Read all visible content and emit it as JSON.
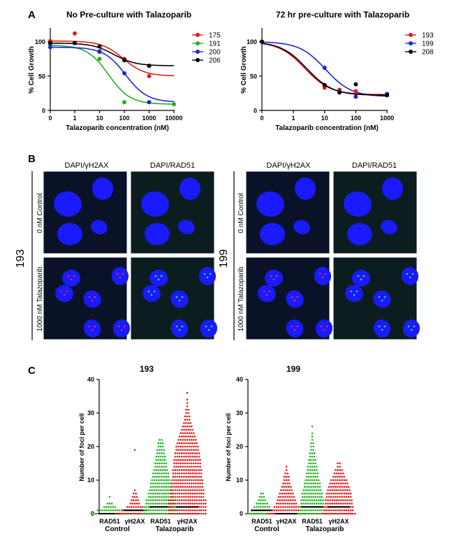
{
  "panel_labels": {
    "a": "A",
    "b": "B",
    "c": "C"
  },
  "colors": {
    "red": "#e41a1c",
    "green": "#22b022",
    "blue": "#1f24d8",
    "black": "#000000",
    "nuclei": "#1a1aff",
    "micro_bg": "#0a1020"
  },
  "chart_data": [
    {
      "type": "line",
      "panel": "A",
      "title": "No Pre-culture with Talazoparib",
      "xlabel": "Talazoparib concentration (nM)",
      "ylabel": "% Cell Growth",
      "x_scale": "log",
      "x_ticks": [
        "0",
        "1",
        "10",
        "100",
        "1000",
        "10000"
      ],
      "y_ticks": [
        "0",
        "50",
        "100"
      ],
      "ylim": [
        0,
        120
      ],
      "legend_position": "right",
      "series": [
        {
          "name": "175",
          "color": "#e41a1c",
          "x": [
            0,
            1,
            10,
            100,
            1000
          ],
          "y": [
            101,
            112,
            85,
            75,
            50
          ]
        },
        {
          "name": "191",
          "color": "#22b022",
          "x": [
            0,
            1,
            10,
            100,
            1000,
            10000
          ],
          "y": [
            95,
            98,
            75,
            12,
            12,
            9
          ]
        },
        {
          "name": "200",
          "color": "#1f24d8",
          "x": [
            0,
            1,
            10,
            100,
            1000
          ],
          "y": [
            92,
            98,
            86,
            54,
            12
          ]
        },
        {
          "name": "206",
          "color": "#000000",
          "x": [
            0,
            1,
            10,
            100,
            1000
          ],
          "y": [
            98,
            98,
            93,
            73,
            65
          ]
        }
      ]
    },
    {
      "type": "line",
      "panel": "A",
      "title": "72 hr pre-culture with Talazoparib",
      "xlabel": "Talazoparib concentration (nM)",
      "ylabel": "% Cell Growth",
      "x_scale": "log",
      "x_ticks": [
        "0",
        "1",
        "10",
        "100",
        "1000"
      ],
      "y_ticks": [
        "0",
        "50",
        "100"
      ],
      "ylim": [
        0,
        120
      ],
      "legend_position": "left",
      "series": [
        {
          "name": "193",
          "color": "#e41a1c",
          "x": [
            0,
            10,
            30,
            100,
            1000
          ],
          "y": [
            100,
            33,
            30,
            28,
            23
          ]
        },
        {
          "name": "199",
          "color": "#1f24d8",
          "x": [
            0,
            10,
            30,
            100,
            1000
          ],
          "y": [
            100,
            62,
            27,
            20,
            24
          ]
        },
        {
          "name": "208",
          "color": "#000000",
          "x": [
            0,
            10,
            30,
            100,
            1000
          ],
          "y": [
            100,
            37,
            26,
            38,
            22
          ]
        }
      ]
    },
    {
      "type": "scatter",
      "panel": "C",
      "title": "193",
      "ylabel": "Number of foci per cell",
      "y_ticks": [
        "0",
        "10",
        "20",
        "30",
        "40"
      ],
      "ylim": [
        0,
        40
      ],
      "categories": [
        "RAD51",
        "γH2AX",
        "RAD51",
        "γH2AX"
      ],
      "groups": [
        "Control",
        "Talazoparib"
      ],
      "series": [
        {
          "category": "RAD51",
          "group": "Control",
          "color": "#22b022",
          "median": 0,
          "counts": [
            [
              0,
              30
            ],
            [
              1,
              12
            ],
            [
              2,
              6
            ],
            [
              3,
              3
            ],
            [
              5,
              1
            ]
          ]
        },
        {
          "category": "γH2AX",
          "group": "Control",
          "color": "#e41a1c",
          "median": 1,
          "counts": [
            [
              0,
              30
            ],
            [
              1,
              12
            ],
            [
              2,
              8
            ],
            [
              3,
              5
            ],
            [
              4,
              4
            ],
            [
              5,
              3
            ],
            [
              6,
              2
            ],
            [
              7,
              1
            ],
            [
              19,
              1
            ]
          ]
        },
        {
          "category": "RAD51",
          "group": "Talazoparib",
          "color": "#22b022",
          "median": 2,
          "counts": [
            [
              0,
              18
            ],
            [
              1,
              16
            ],
            [
              2,
              16
            ],
            [
              3,
              14
            ],
            [
              4,
              14
            ],
            [
              5,
              12
            ],
            [
              6,
              12
            ],
            [
              7,
              11
            ],
            [
              8,
              10
            ],
            [
              9,
              10
            ],
            [
              10,
              9
            ],
            [
              11,
              8
            ],
            [
              12,
              8
            ],
            [
              13,
              7
            ],
            [
              14,
              6
            ],
            [
              15,
              6
            ],
            [
              16,
              5
            ],
            [
              17,
              5
            ],
            [
              18,
              4
            ],
            [
              19,
              4
            ],
            [
              20,
              3
            ],
            [
              21,
              3
            ],
            [
              22,
              2
            ]
          ]
        },
        {
          "category": "γH2AX",
          "group": "Talazoparib",
          "color": "#e41a1c",
          "median": 2,
          "counts": [
            [
              0,
              18
            ],
            [
              1,
              18
            ],
            [
              2,
              18
            ],
            [
              3,
              18
            ],
            [
              4,
              18
            ],
            [
              5,
              16
            ],
            [
              6,
              16
            ],
            [
              7,
              16
            ],
            [
              8,
              15
            ],
            [
              9,
              15
            ],
            [
              10,
              15
            ],
            [
              11,
              14
            ],
            [
              12,
              14
            ],
            [
              13,
              14
            ],
            [
              14,
              13
            ],
            [
              15,
              13
            ],
            [
              16,
              13
            ],
            [
              17,
              12
            ],
            [
              18,
              12
            ],
            [
              19,
              11
            ],
            [
              20,
              11
            ],
            [
              21,
              10
            ],
            [
              22,
              9
            ],
            [
              23,
              8
            ],
            [
              24,
              7
            ],
            [
              25,
              6
            ],
            [
              26,
              5
            ],
            [
              27,
              4
            ],
            [
              28,
              3
            ],
            [
              29,
              3
            ],
            [
              30,
              2
            ],
            [
              31,
              2
            ],
            [
              32,
              1
            ],
            [
              33,
              1
            ],
            [
              34,
              1
            ],
            [
              36,
              1
            ]
          ]
        }
      ]
    },
    {
      "type": "scatter",
      "panel": "C",
      "title": "199",
      "ylabel": "Number of foci per cell",
      "y_ticks": [
        "0",
        "10",
        "20",
        "30",
        "40"
      ],
      "ylim": [
        0,
        40
      ],
      "categories": [
        "RAD51",
        "γH2AX",
        "RAD51",
        "γH2AX"
      ],
      "groups": [
        "Control",
        "Talazoparib"
      ],
      "series": [
        {
          "category": "RAD51",
          "group": "Control",
          "color": "#22b022",
          "median": 1,
          "counts": [
            [
              0,
              14
            ],
            [
              1,
              10
            ],
            [
              2,
              8
            ],
            [
              3,
              6
            ],
            [
              4,
              4
            ],
            [
              5,
              3
            ],
            [
              6,
              2
            ]
          ]
        },
        {
          "category": "γH2AX",
          "group": "Control",
          "color": "#e41a1c",
          "median": 0,
          "counts": [
            [
              0,
              18
            ],
            [
              1,
              14
            ],
            [
              2,
              12
            ],
            [
              3,
              10
            ],
            [
              4,
              9
            ],
            [
              5,
              8
            ],
            [
              6,
              7
            ],
            [
              7,
              6
            ],
            [
              8,
              5
            ],
            [
              9,
              4
            ],
            [
              10,
              3
            ],
            [
              11,
              3
            ],
            [
              12,
              2
            ],
            [
              13,
              1
            ],
            [
              14,
              1
            ]
          ]
        },
        {
          "category": "RAD51",
          "group": "Talazoparib",
          "color": "#22b022",
          "median": 2,
          "counts": [
            [
              0,
              14
            ],
            [
              1,
              12
            ],
            [
              2,
              12
            ],
            [
              3,
              11
            ],
            [
              4,
              11
            ],
            [
              5,
              10
            ],
            [
              6,
              10
            ],
            [
              7,
              9
            ],
            [
              8,
              8
            ],
            [
              9,
              8
            ],
            [
              10,
              7
            ],
            [
              11,
              6
            ],
            [
              12,
              6
            ],
            [
              13,
              5
            ],
            [
              14,
              5
            ],
            [
              15,
              4
            ],
            [
              16,
              4
            ],
            [
              17,
              3
            ],
            [
              18,
              3
            ],
            [
              19,
              2
            ],
            [
              20,
              2
            ],
            [
              21,
              2
            ],
            [
              22,
              1
            ],
            [
              23,
              1
            ],
            [
              24,
              1
            ],
            [
              26,
              1
            ]
          ]
        },
        {
          "category": "γH2AX",
          "group": "Talazoparib",
          "color": "#e41a1c",
          "median": 2,
          "counts": [
            [
              0,
              16
            ],
            [
              1,
              14
            ],
            [
              2,
              14
            ],
            [
              3,
              13
            ],
            [
              4,
              13
            ],
            [
              5,
              12
            ],
            [
              6,
              12
            ],
            [
              7,
              11
            ],
            [
              8,
              10
            ],
            [
              9,
              9
            ],
            [
              10,
              8
            ],
            [
              11,
              6
            ],
            [
              12,
              5
            ],
            [
              13,
              4
            ],
            [
              14,
              2
            ],
            [
              15,
              2
            ]
          ]
        }
      ]
    }
  ],
  "micrograph_panel": {
    "column_headers": [
      "DAPI/γH2AX",
      "DAPI/RAD51"
    ],
    "row_labels": [
      "0 nM Control",
      "1000 nM Talazoparib"
    ],
    "cell_lines": [
      "193",
      "199"
    ]
  }
}
